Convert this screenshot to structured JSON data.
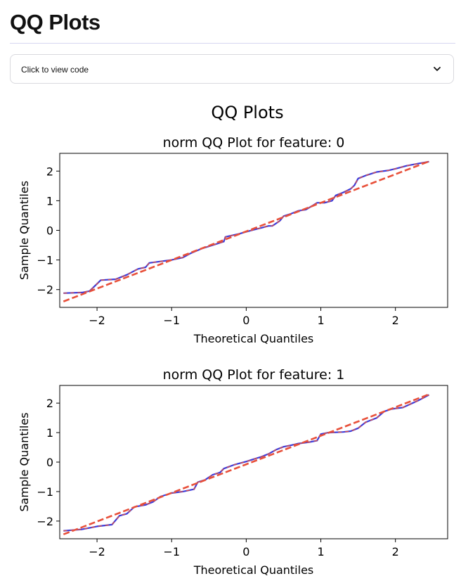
{
  "page": {
    "title": "QQ Plots",
    "expander_label": "Click to view code",
    "chevron_icon": "chevron-down-icon"
  },
  "figure": {
    "suptitle": "QQ Plots"
  },
  "chart_data": [
    {
      "type": "scatter",
      "title": "norm QQ Plot for feature: 0",
      "xlabel": "Theoretical Quantiles",
      "ylabel": "Sample Quantiles",
      "xlim": [
        -2.5,
        2.7
      ],
      "ylim": [
        -2.6,
        2.6
      ],
      "xticks": [
        -2,
        -1,
        0,
        1,
        2
      ],
      "yticks": [
        -2,
        -1,
        0,
        1,
        2
      ],
      "xtick_labels": [
        "−2",
        "−1",
        "0",
        "1",
        "2"
      ],
      "ytick_labels": [
        "−2",
        "−1",
        "0",
        "1",
        "2"
      ],
      "grid": false,
      "series": [
        {
          "role": "sample",
          "color": "#3b3bdb",
          "points": [
            [
              -2.45,
              -2.12
            ],
            [
              -2.2,
              -2.1
            ],
            [
              -2.1,
              -2.05
            ],
            [
              -1.95,
              -1.68
            ],
            [
              -1.75,
              -1.65
            ],
            [
              -1.6,
              -1.5
            ],
            [
              -1.45,
              -1.3
            ],
            [
              -1.35,
              -1.25
            ],
            [
              -1.3,
              -1.1
            ],
            [
              -1.15,
              -1.05
            ],
            [
              -1.0,
              -1.0
            ],
            [
              -0.85,
              -0.92
            ],
            [
              -0.75,
              -0.78
            ],
            [
              -0.6,
              -0.62
            ],
            [
              -0.45,
              -0.5
            ],
            [
              -0.3,
              -0.38
            ],
            [
              -0.28,
              -0.22
            ],
            [
              -0.1,
              -0.12
            ],
            [
              0.0,
              -0.05
            ],
            [
              0.1,
              0.02
            ],
            [
              0.2,
              0.08
            ],
            [
              0.3,
              0.15
            ],
            [
              0.35,
              0.15
            ],
            [
              0.45,
              0.32
            ],
            [
              0.5,
              0.48
            ],
            [
              0.6,
              0.56
            ],
            [
              0.7,
              0.66
            ],
            [
              0.8,
              0.7
            ],
            [
              0.9,
              0.85
            ],
            [
              0.95,
              0.93
            ],
            [
              1.05,
              0.93
            ],
            [
              1.15,
              1.0
            ],
            [
              1.2,
              1.18
            ],
            [
              1.3,
              1.28
            ],
            [
              1.4,
              1.4
            ],
            [
              1.45,
              1.52
            ],
            [
              1.5,
              1.75
            ],
            [
              1.6,
              1.85
            ],
            [
              1.75,
              1.97
            ],
            [
              1.9,
              2.02
            ],
            [
              2.0,
              2.08
            ],
            [
              2.15,
              2.18
            ],
            [
              2.3,
              2.25
            ],
            [
              2.45,
              2.32
            ]
          ]
        },
        {
          "role": "reference",
          "style": "dashed",
          "color": "#e8503a",
          "points": [
            [
              -2.45,
              -2.4
            ],
            [
              2.45,
              2.33
            ]
          ]
        }
      ]
    },
    {
      "type": "scatter",
      "title": "norm QQ Plot for feature: 1",
      "xlabel": "Theoretical Quantiles",
      "ylabel": "Sample Quantiles",
      "xlim": [
        -2.5,
        2.7
      ],
      "ylim": [
        -2.6,
        2.6
      ],
      "xticks": [
        -2,
        -1,
        0,
        1,
        2
      ],
      "yticks": [
        -2,
        -1,
        0,
        1,
        2
      ],
      "xtick_labels": [
        "−2",
        "−1",
        "0",
        "1",
        "2"
      ],
      "ytick_labels": [
        "−2",
        "−1",
        "0",
        "1",
        "2"
      ],
      "grid": false,
      "series": [
        {
          "role": "sample",
          "color": "#3b3bdb",
          "points": [
            [
              -2.45,
              -2.33
            ],
            [
              -2.2,
              -2.28
            ],
            [
              -2.0,
              -2.18
            ],
            [
              -1.8,
              -2.12
            ],
            [
              -1.7,
              -1.82
            ],
            [
              -1.6,
              -1.75
            ],
            [
              -1.5,
              -1.52
            ],
            [
              -1.35,
              -1.45
            ],
            [
              -1.25,
              -1.35
            ],
            [
              -1.15,
              -1.17
            ],
            [
              -1.0,
              -1.05
            ],
            [
              -0.85,
              -1.0
            ],
            [
              -0.7,
              -0.92
            ],
            [
              -0.65,
              -0.68
            ],
            [
              -0.55,
              -0.6
            ],
            [
              -0.45,
              -0.43
            ],
            [
              -0.35,
              -0.35
            ],
            [
              -0.3,
              -0.22
            ],
            [
              -0.15,
              -0.08
            ],
            [
              0.0,
              0.02
            ],
            [
              0.1,
              0.1
            ],
            [
              0.2,
              0.18
            ],
            [
              0.3,
              0.28
            ],
            [
              0.4,
              0.42
            ],
            [
              0.5,
              0.52
            ],
            [
              0.6,
              0.57
            ],
            [
              0.7,
              0.63
            ],
            [
              0.85,
              0.68
            ],
            [
              0.95,
              0.73
            ],
            [
              1.0,
              0.95
            ],
            [
              1.1,
              1.0
            ],
            [
              1.3,
              1.02
            ],
            [
              1.4,
              1.05
            ],
            [
              1.5,
              1.15
            ],
            [
              1.6,
              1.35
            ],
            [
              1.75,
              1.5
            ],
            [
              1.85,
              1.72
            ],
            [
              1.95,
              1.8
            ],
            [
              2.1,
              1.85
            ],
            [
              2.3,
              2.08
            ],
            [
              2.45,
              2.28
            ]
          ]
        },
        {
          "role": "reference",
          "style": "dashed",
          "color": "#e8503a",
          "points": [
            [
              -2.45,
              -2.45
            ],
            [
              2.45,
              2.3
            ]
          ]
        }
      ]
    }
  ]
}
